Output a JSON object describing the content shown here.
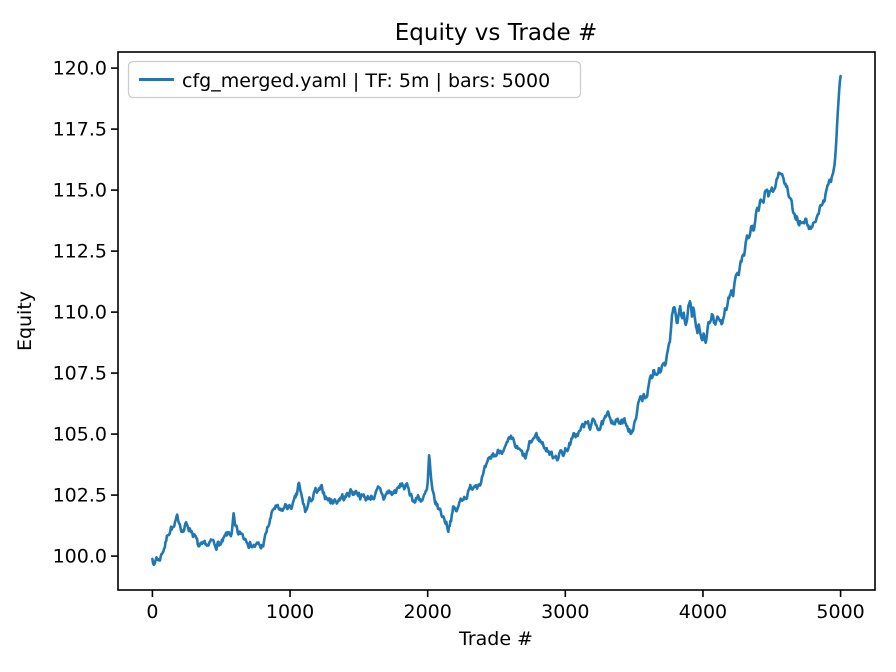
{
  "chart_data": {
    "type": "line",
    "title": "Equity vs Trade #",
    "xlabel": "Trade #",
    "ylabel": "Equity",
    "grid": false,
    "legend": {
      "position": "upper left",
      "entries": [
        {
          "label": "cfg_merged.yaml | TF: 5m | bars: 5000",
          "color": "#1f77b4"
        }
      ]
    },
    "x_ticks": [
      "0",
      "1000",
      "2000",
      "3000",
      "4000",
      "5000"
    ],
    "y_ticks": [
      "100.0",
      "102.5",
      "105.0",
      "107.5",
      "110.0",
      "112.5",
      "115.0",
      "117.5",
      "120.0"
    ],
    "xlim": [
      -250,
      5250
    ],
    "ylim": [
      98.61,
      120.66
    ],
    "line_color": "#1f77b4",
    "series": [
      {
        "name": "cfg_merged.yaml | TF: 5m | bars: 5000",
        "points": [
          [
            0,
            99.95
          ],
          [
            12,
            99.62
          ],
          [
            30,
            99.98
          ],
          [
            48,
            99.85
          ],
          [
            70,
            100.2
          ],
          [
            95,
            100.6
          ],
          [
            115,
            101.0
          ],
          [
            135,
            101.3
          ],
          [
            158,
            101.18
          ],
          [
            178,
            101.4
          ],
          [
            200,
            101.32
          ],
          [
            222,
            101.12
          ],
          [
            242,
            101.3
          ],
          [
            262,
            101.22
          ],
          [
            285,
            101.12
          ],
          [
            308,
            100.88
          ],
          [
            332,
            100.35
          ],
          [
            355,
            100.22
          ],
          [
            372,
            100.12
          ],
          [
            392,
            100.3
          ],
          [
            412,
            100.25
          ],
          [
            432,
            100.42
          ],
          [
            452,
            100.32
          ],
          [
            475,
            100.52
          ],
          [
            498,
            100.45
          ],
          [
            520,
            100.55
          ],
          [
            542,
            100.68
          ],
          [
            560,
            100.78
          ],
          [
            578,
            100.88
          ],
          [
            590,
            101.55
          ],
          [
            600,
            100.98
          ],
          [
            614,
            100.82
          ],
          [
            628,
            100.65
          ],
          [
            648,
            100.78
          ],
          [
            668,
            100.72
          ],
          [
            692,
            100.82
          ],
          [
            714,
            100.65
          ],
          [
            734,
            100.58
          ],
          [
            754,
            100.5
          ],
          [
            772,
            100.4
          ],
          [
            790,
            100.28
          ],
          [
            808,
            100.52
          ],
          [
            826,
            100.85
          ],
          [
            844,
            101.2
          ],
          [
            862,
            101.55
          ],
          [
            880,
            101.85
          ],
          [
            894,
            101.97
          ],
          [
            914,
            101.78
          ],
          [
            936,
            101.6
          ],
          [
            954,
            101.82
          ],
          [
            974,
            102.0
          ],
          [
            994,
            101.9
          ],
          [
            1014,
            102.05
          ],
          [
            1034,
            102.15
          ],
          [
            1052,
            102.35
          ],
          [
            1062,
            102.95
          ],
          [
            1074,
            102.5
          ],
          [
            1086,
            102.2
          ],
          [
            1098,
            101.95
          ],
          [
            1112,
            101.72
          ],
          [
            1128,
            101.95
          ],
          [
            1144,
            102.2
          ],
          [
            1162,
            102.35
          ],
          [
            1184,
            102.58
          ],
          [
            1200,
            102.45
          ],
          [
            1218,
            102.55
          ],
          [
            1236,
            102.5
          ],
          [
            1256,
            102.42
          ],
          [
            1276,
            102.35
          ],
          [
            1296,
            102.22
          ],
          [
            1318,
            102.35
          ],
          [
            1338,
            102.28
          ],
          [
            1358,
            102.45
          ],
          [
            1378,
            102.5
          ],
          [
            1398,
            102.4
          ],
          [
            1420,
            102.52
          ],
          [
            1442,
            102.72
          ],
          [
            1460,
            102.62
          ],
          [
            1480,
            102.7
          ],
          [
            1502,
            102.68
          ],
          [
            1524,
            102.5
          ],
          [
            1546,
            102.42
          ],
          [
            1568,
            102.38
          ],
          [
            1590,
            102.5
          ],
          [
            1614,
            102.55
          ],
          [
            1640,
            102.6
          ],
          [
            1662,
            102.45
          ],
          [
            1680,
            102.3
          ],
          [
            1700,
            102.5
          ],
          [
            1718,
            102.62
          ],
          [
            1738,
            102.52
          ],
          [
            1756,
            102.6
          ],
          [
            1776,
            102.68
          ],
          [
            1796,
            102.74
          ],
          [
            1814,
            102.9
          ],
          [
            1834,
            102.8
          ],
          [
            1858,
            102.72
          ],
          [
            1884,
            102.48
          ],
          [
            1908,
            102.3
          ],
          [
            1930,
            102.45
          ],
          [
            1954,
            102.38
          ],
          [
            1978,
            102.44
          ],
          [
            1998,
            102.6
          ],
          [
            2011,
            104.05
          ],
          [
            2022,
            103.1
          ],
          [
            2034,
            102.35
          ],
          [
            2052,
            102.05
          ],
          [
            2072,
            101.9
          ],
          [
            2092,
            101.75
          ],
          [
            2112,
            101.6
          ],
          [
            2132,
            101.45
          ],
          [
            2150,
            101.22
          ],
          [
            2166,
            101.62
          ],
          [
            2186,
            102.0
          ],
          [
            2204,
            101.82
          ],
          [
            2222,
            101.92
          ],
          [
            2240,
            102.25
          ],
          [
            2258,
            102.45
          ],
          [
            2278,
            102.58
          ],
          [
            2298,
            102.7
          ],
          [
            2318,
            102.78
          ],
          [
            2342,
            103.05
          ],
          [
            2366,
            103.18
          ],
          [
            2390,
            103.3
          ],
          [
            2412,
            103.45
          ],
          [
            2434,
            103.58
          ],
          [
            2454,
            103.7
          ],
          [
            2470,
            103.98
          ],
          [
            2492,
            104.06
          ],
          [
            2514,
            104.25
          ],
          [
            2536,
            104.38
          ],
          [
            2552,
            104.62
          ],
          [
            2568,
            104.52
          ],
          [
            2584,
            104.6
          ],
          [
            2602,
            104.55
          ],
          [
            2620,
            104.46
          ],
          [
            2640,
            104.3
          ],
          [
            2660,
            104.18
          ],
          [
            2678,
            104.05
          ],
          [
            2696,
            103.9
          ],
          [
            2712,
            103.88
          ],
          [
            2732,
            104.28
          ],
          [
            2750,
            104.5
          ],
          [
            2766,
            104.72
          ],
          [
            2786,
            104.88
          ],
          [
            2808,
            104.78
          ],
          [
            2832,
            104.62
          ],
          [
            2856,
            104.48
          ],
          [
            2878,
            104.36
          ],
          [
            2896,
            104.18
          ],
          [
            2912,
            104.1
          ],
          [
            2930,
            104.26
          ],
          [
            2950,
            104.18
          ],
          [
            2968,
            104.3
          ],
          [
            2988,
            104.24
          ],
          [
            3012,
            104.5
          ],
          [
            3040,
            104.68
          ],
          [
            3068,
            104.85
          ],
          [
            3098,
            105.05
          ],
          [
            3128,
            105.28
          ],
          [
            3158,
            105.35
          ],
          [
            3182,
            105.3
          ],
          [
            3212,
            105.45
          ],
          [
            3242,
            105.38
          ],
          [
            3278,
            105.42
          ],
          [
            3310,
            105.55
          ],
          [
            3340,
            105.6
          ],
          [
            3366,
            105.65
          ],
          [
            3396,
            105.45
          ],
          [
            3428,
            105.38
          ],
          [
            3464,
            105.28
          ],
          [
            3497,
            105.15
          ],
          [
            3521,
            106.05
          ],
          [
            3544,
            106.45
          ],
          [
            3558,
            106.3
          ],
          [
            3570,
            106.7
          ],
          [
            3582,
            106.58
          ],
          [
            3598,
            106.85
          ],
          [
            3608,
            107.1
          ],
          [
            3620,
            107.25
          ],
          [
            3632,
            107.08
          ],
          [
            3642,
            107.5
          ],
          [
            3656,
            107.38
          ],
          [
            3670,
            107.62
          ],
          [
            3680,
            107.8
          ],
          [
            3692,
            107.68
          ],
          [
            3705,
            108.05
          ],
          [
            3714,
            108.3
          ],
          [
            3726,
            108.08
          ],
          [
            3740,
            108.5
          ],
          [
            3752,
            108.85
          ],
          [
            3763,
            109.1
          ],
          [
            3774,
            109.9
          ],
          [
            3786,
            110.2
          ],
          [
            3800,
            109.88
          ],
          [
            3812,
            109.3
          ],
          [
            3824,
            109.6
          ],
          [
            3836,
            110.05
          ],
          [
            3849,
            109.5
          ],
          [
            3860,
            109.8
          ],
          [
            3872,
            109.32
          ],
          [
            3885,
            109.7
          ],
          [
            3896,
            110.1
          ],
          [
            3908,
            110.25
          ],
          [
            3921,
            109.75
          ],
          [
            3932,
            110.28
          ],
          [
            3944,
            109.6
          ],
          [
            3958,
            109.2
          ],
          [
            3971,
            109.48
          ],
          [
            3983,
            109.0
          ],
          [
            3996,
            108.75
          ],
          [
            4006,
            109.2
          ],
          [
            4018,
            108.82
          ],
          [
            4030,
            109.3
          ],
          [
            4042,
            109.78
          ],
          [
            4056,
            109.6
          ],
          [
            4068,
            110.08
          ],
          [
            4082,
            109.62
          ],
          [
            4094,
            109.5
          ],
          [
            4108,
            109.8
          ],
          [
            4122,
            109.6
          ],
          [
            4136,
            109.46
          ],
          [
            4150,
            109.95
          ],
          [
            4162,
            110.5
          ],
          [
            4174,
            110.3
          ],
          [
            4188,
            110.6
          ],
          [
            4204,
            110.85
          ],
          [
            4218,
            110.7
          ],
          [
            4232,
            111.2
          ],
          [
            4246,
            111.42
          ],
          [
            4258,
            111.25
          ],
          [
            4272,
            111.8
          ],
          [
            4286,
            112.1
          ],
          [
            4298,
            112.0
          ],
          [
            4310,
            112.5
          ],
          [
            4322,
            113.0
          ],
          [
            4333,
            112.85
          ],
          [
            4345,
            113.2
          ],
          [
            4357,
            113.5
          ],
          [
            4368,
            113.35
          ],
          [
            4380,
            113.8
          ],
          [
            4393,
            114.1
          ],
          [
            4404,
            113.95
          ],
          [
            4416,
            114.3
          ],
          [
            4429,
            114.5
          ],
          [
            4440,
            114.35
          ],
          [
            4452,
            114.7
          ],
          [
            4465,
            114.9
          ],
          [
            4476,
            114.75
          ],
          [
            4488,
            115.0
          ],
          [
            4501,
            115.2
          ],
          [
            4512,
            115.05
          ],
          [
            4525,
            115.35
          ],
          [
            4538,
            115.6
          ],
          [
            4551,
            115.8
          ],
          [
            4564,
            115.9
          ],
          [
            4578,
            115.6
          ],
          [
            4595,
            115.3
          ],
          [
            4609,
            115.1
          ],
          [
            4620,
            114.8
          ],
          [
            4632,
            114.5
          ],
          [
            4647,
            114.15
          ],
          [
            4658,
            113.88
          ],
          [
            4670,
            113.75
          ],
          [
            4684,
            113.9
          ],
          [
            4695,
            113.65
          ],
          [
            4708,
            113.8
          ],
          [
            4720,
            113.62
          ],
          [
            4732,
            113.55
          ],
          [
            4744,
            113.75
          ],
          [
            4757,
            113.5
          ],
          [
            4770,
            113.45
          ],
          [
            4786,
            113.38
          ],
          [
            4800,
            113.6
          ],
          [
            4814,
            113.85
          ],
          [
            4828,
            114.0
          ],
          [
            4842,
            114.18
          ],
          [
            4857,
            114.4
          ],
          [
            4871,
            114.55
          ],
          [
            4886,
            114.68
          ],
          [
            4899,
            115.0
          ],
          [
            4911,
            115.05
          ],
          [
            4924,
            115.18
          ],
          [
            4936,
            115.5
          ],
          [
            4948,
            115.72
          ],
          [
            4958,
            116.1
          ],
          [
            4966,
            116.7
          ],
          [
            4973,
            117.4
          ],
          [
            4979,
            118.1
          ],
          [
            4984,
            118.55
          ],
          [
            4988,
            118.85
          ],
          [
            4992,
            119.3
          ],
          [
            5000,
            119.65
          ]
        ]
      }
    ]
  }
}
